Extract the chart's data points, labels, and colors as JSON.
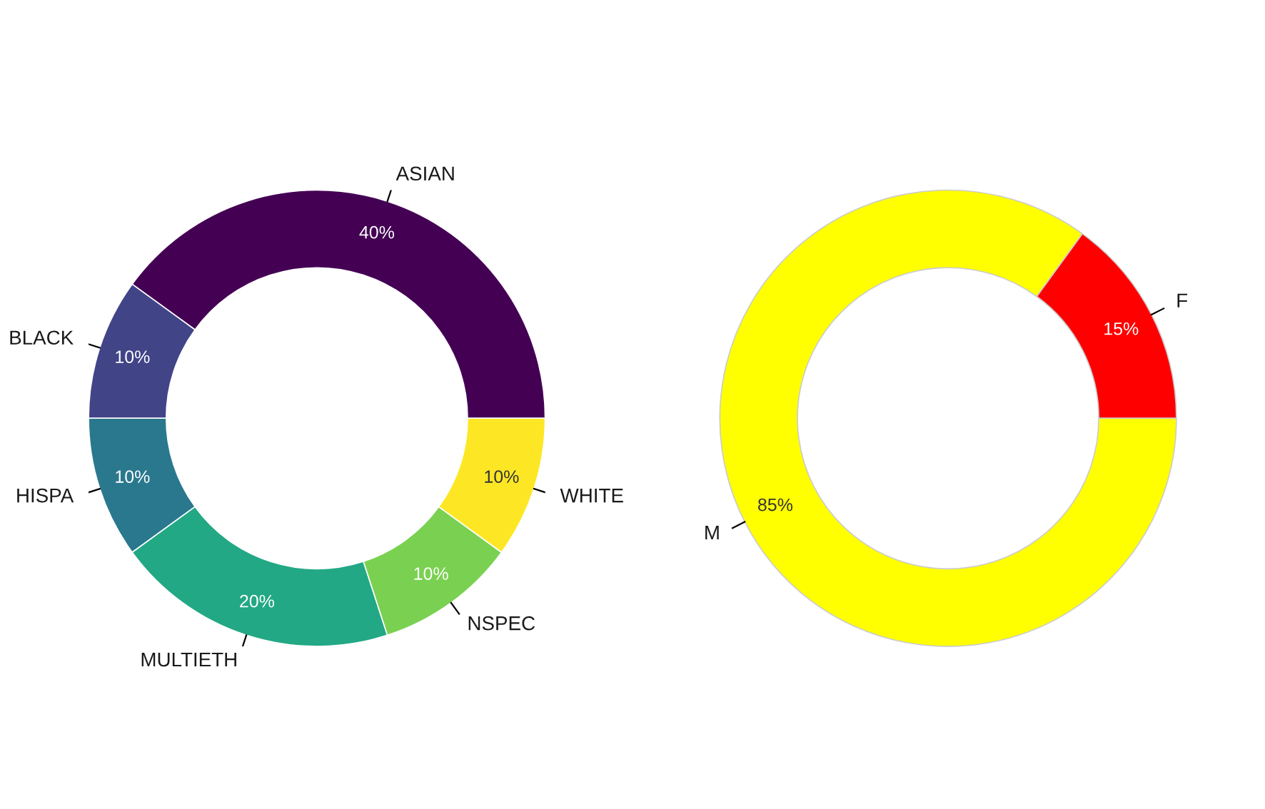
{
  "chart_data": [
    {
      "type": "donut",
      "categories": [
        "ASIAN",
        "BLACK",
        "HISPA",
        "MULTIETH",
        "NSPEC",
        "WHITE"
      ],
      "values": [
        40,
        10,
        10,
        20,
        10,
        10
      ],
      "colors": [
        "#440154",
        "#414487",
        "#2a788e",
        "#22a884",
        "#7ad151",
        "#fde725"
      ],
      "value_labels": [
        "40%",
        "10%",
        "10%",
        "20%",
        "10%",
        "10%"
      ]
    },
    {
      "type": "donut",
      "categories": [
        "F",
        "M"
      ],
      "values": [
        15,
        85
      ],
      "colors": [
        "#ff0000",
        "#ffff00"
      ],
      "value_labels": [
        "15%",
        "85%"
      ]
    }
  ]
}
